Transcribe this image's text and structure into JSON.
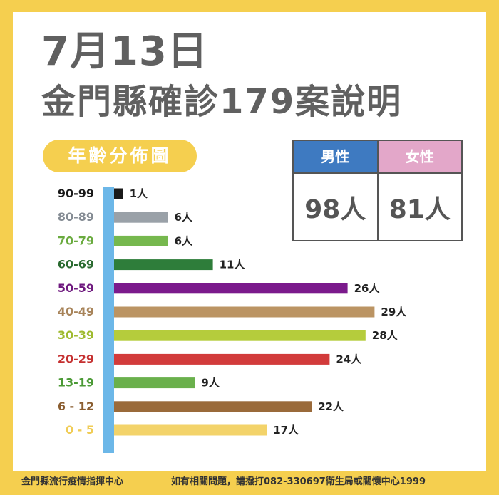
{
  "title_line1": "7月13日",
  "title_line2": "金門縣確診179案說明",
  "section_label": "年齡分佈圖",
  "gender": {
    "male_label": "男性",
    "male_value": "98人",
    "male_color": "#3e7ac1",
    "female_label": "女性",
    "female_value": "81人",
    "female_color": "#e3a7c9"
  },
  "chart_data": {
    "type": "bar",
    "orientation": "horizontal",
    "categories": [
      "90-99",
      "80-89",
      "70-79",
      "60-69",
      "50-59",
      "40-49",
      "30-39",
      "20-29",
      "13-19",
      "6 - 12",
      "0 - 5"
    ],
    "values": [
      1,
      6,
      6,
      11,
      26,
      29,
      28,
      24,
      9,
      22,
      17
    ],
    "value_labels": [
      "1人",
      "6人",
      "6人",
      "11人",
      "26人",
      "29人",
      "28人",
      "24人",
      "9人",
      "22人",
      "17人"
    ],
    "colors": [
      "#1a1a1a",
      "#9aa1a8",
      "#76b84e",
      "#2e7d3a",
      "#7b1a8c",
      "#bb9463",
      "#b5cc3c",
      "#d23b3b",
      "#6ab04c",
      "#9a6a3a",
      "#f3d36a"
    ],
    "label_colors": [
      "#1a1a1a",
      "#858c94",
      "#6aab3f",
      "#2a6a30",
      "#6f1a7f",
      "#a8845a",
      "#9fba2e",
      "#c53030",
      "#4b9a36",
      "#8a5d30",
      "#f0cc55"
    ],
    "axis_color": "#6cb7e8",
    "xlim": [
      0,
      30
    ],
    "grid": false
  },
  "footer": {
    "left": "金門縣流行疫情指揮中心",
    "right": "如有相關問題，請撥打082-330697衛生局或關懷中心1999"
  }
}
